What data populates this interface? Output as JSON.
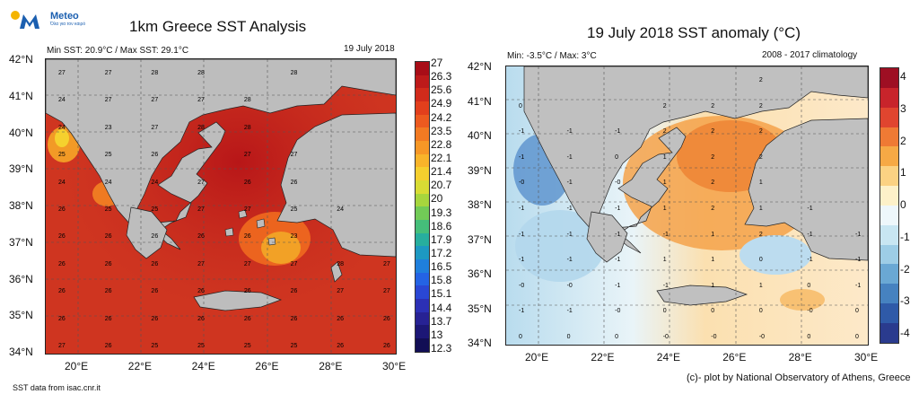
{
  "brand": {
    "name": "Meteo",
    "tagline": "Όλα για τον καιρό"
  },
  "left_panel": {
    "title": "1km Greece SST Analysis",
    "stats": "Min SST: 20.9°C / Max SST: 29.1°C",
    "date": "19 July 2018",
    "source": "SST data from isac.cnr.it",
    "lat_labels": [
      "42°N",
      "41°N",
      "40°N",
      "39°N",
      "38°N",
      "37°N",
      "36°N",
      "35°N",
      "34°N"
    ],
    "lon_labels": [
      "20°E",
      "22°E",
      "24°E",
      "26°E",
      "28°E",
      "30°E"
    ],
    "colorbar": {
      "labels": [
        "27",
        "26.3",
        "25.6",
        "24.9",
        "24.2",
        "23.5",
        "22.8",
        "22.1",
        "21.4",
        "20.7",
        "20",
        "19.3",
        "18.6",
        "17.9",
        "17.2",
        "16.5",
        "15.8",
        "15.1",
        "14.4",
        "13.7",
        "13",
        "12.3"
      ],
      "colors": [
        "#a80d17",
        "#bd1a1a",
        "#d12b1b",
        "#e23f1c",
        "#ec5a1f",
        "#f27a22",
        "#f69726",
        "#f8b42a",
        "#f5cf2e",
        "#d8dc34",
        "#a7d63d",
        "#72cb57",
        "#45be7a",
        "#27ae9e",
        "#1d99c2",
        "#1f7fdc",
        "#2463e4",
        "#2a47d4",
        "#2c30b5",
        "#272294",
        "#1c1776",
        "#120e55"
      ]
    },
    "grid_values": [
      [
        "27",
        "27",
        "28",
        "28",
        "",
        "28",
        "",
        ""
      ],
      [
        "24",
        "27",
        "27",
        "27",
        "28",
        "",
        "",
        ""
      ],
      [
        "24",
        "23",
        "27",
        "28",
        "28",
        "",
        "",
        ""
      ],
      [
        "25",
        "25",
        "26",
        "",
        "27",
        "27",
        "",
        ""
      ],
      [
        "24",
        "24",
        "24",
        "27",
        "26",
        "26",
        "",
        ""
      ],
      [
        "26",
        "25",
        "25",
        "27",
        "27",
        "25",
        "24",
        ""
      ],
      [
        "26",
        "26",
        "26",
        "26",
        "26",
        "23",
        "",
        ""
      ],
      [
        "26",
        "26",
        "26",
        "27",
        "27",
        "27",
        "28",
        "27"
      ],
      [
        "26",
        "26",
        "26",
        "26",
        "26",
        "26",
        "27",
        "27"
      ],
      [
        "26",
        "26",
        "26",
        "26",
        "26",
        "26",
        "26",
        "26"
      ],
      [
        "27",
        "26",
        "25",
        "25",
        "25",
        "25",
        "26",
        "26"
      ]
    ]
  },
  "right_panel": {
    "title": "19 July 2018 SST anomaly (°C)",
    "stats": "Min: -3.5°C / Max: 3°C",
    "climatology": "2008 - 2017 climatology",
    "credit": "(c)- plot by National Observatory of Athens, Greece",
    "lat_labels": [
      "42°N",
      "41°N",
      "40°N",
      "39°N",
      "38°N",
      "37°N",
      "36°N",
      "35°N",
      "34°N"
    ],
    "lon_labels": [
      "20°E",
      "22°E",
      "24°E",
      "26°E",
      "28°E",
      "30°E"
    ],
    "colorbar": {
      "labels": [
        "4",
        "3",
        "2",
        "1",
        "0",
        "-1",
        "-2",
        "-3",
        "-4"
      ],
      "colors": [
        "#9e0f23",
        "#c8242b",
        "#e0452f",
        "#ef7a34",
        "#f6a945",
        "#fbd283",
        "#fdf1c9",
        "#eef7fb",
        "#c8e6f2",
        "#9dcde6",
        "#6aa8d4",
        "#4682c0",
        "#2f5aa8",
        "#2a3b8e"
      ]
    },
    "grid_values": [
      [
        "",
        "",
        "",
        "",
        "",
        "2",
        "",
        ""
      ],
      [
        "0",
        "",
        "",
        "2",
        "2",
        "2",
        "",
        ""
      ],
      [
        "-1",
        "-1",
        "-1",
        "2",
        "2",
        "2",
        "",
        ""
      ],
      [
        "-1",
        "-1",
        "0",
        "1",
        "2",
        "2",
        "",
        ""
      ],
      [
        "-0",
        "-1",
        "-0",
        "1",
        "2",
        "1",
        "",
        ""
      ],
      [
        "-1",
        "-1",
        "-1",
        "1",
        "2",
        "1",
        "-1",
        ""
      ],
      [
        "-1",
        "-1",
        "-1",
        "-1",
        "1",
        "2",
        "-1",
        "-1"
      ],
      [
        "-1",
        "-1",
        "-1",
        "1",
        "1",
        "0",
        "-1",
        "-1"
      ],
      [
        "-0",
        "-0",
        "-1",
        "-1",
        "1",
        "1",
        "0",
        "-1"
      ],
      [
        "-1",
        "-1",
        "-0",
        "0",
        "0",
        "0",
        "-0",
        "0"
      ],
      [
        "0",
        "0",
        "0",
        "-0",
        "-0",
        "-0",
        "0",
        "0"
      ]
    ]
  }
}
